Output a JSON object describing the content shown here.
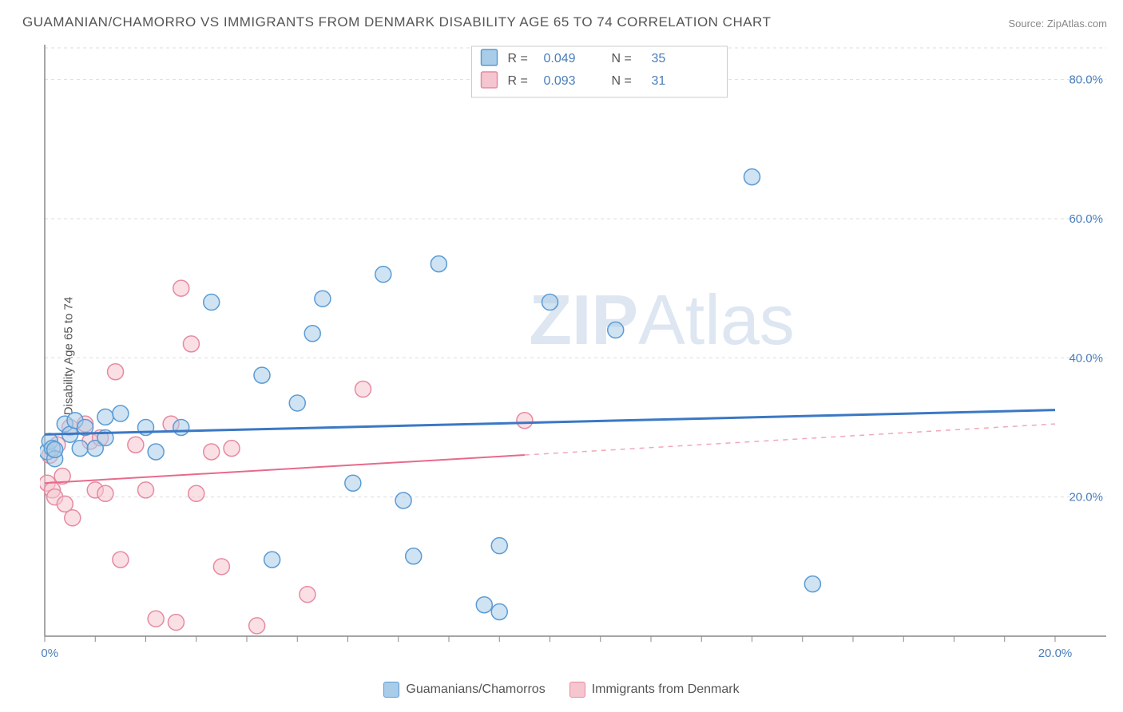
{
  "title": "GUAMANIAN/CHAMORRO VS IMMIGRANTS FROM DENMARK DISABILITY AGE 65 TO 74 CORRELATION CHART",
  "source": "Source: ZipAtlas.com",
  "ylabel": "Disability Age 65 to 74",
  "watermark": {
    "bold": "ZIP",
    "rest": "Atlas"
  },
  "chart": {
    "type": "scatter",
    "xlim": [
      0,
      20
    ],
    "ylim": [
      0,
      85
    ],
    "xtick_values": [
      0,
      20
    ],
    "xtick_labels": [
      "0.0%",
      "20.0%"
    ],
    "ytick_values": [
      20,
      40,
      60,
      80
    ],
    "ytick_labels": [
      "20.0%",
      "40.0%",
      "60.0%",
      "80.0%"
    ],
    "grid_color": "#dddddd",
    "axis_color": "#888888",
    "background_color": "#ffffff",
    "marker_radius": 10,
    "series": [
      {
        "name": "Guamanians/Chamorros",
        "color_fill": "#a9cce8",
        "color_stroke": "#5a9bd5",
        "R": "0.049",
        "N": "35",
        "trend": {
          "x0": 0,
          "y0": 29.0,
          "x1": 20,
          "y1": 32.5,
          "solid_until": 20
        },
        "points": [
          [
            0.05,
            26.5
          ],
          [
            0.1,
            28.0
          ],
          [
            0.15,
            27.0
          ],
          [
            0.2,
            25.5
          ],
          [
            0.2,
            26.8
          ],
          [
            0.4,
            30.5
          ],
          [
            0.5,
            29.0
          ],
          [
            0.6,
            31.0
          ],
          [
            0.7,
            27.0
          ],
          [
            0.8,
            30.0
          ],
          [
            1.0,
            27.0
          ],
          [
            1.2,
            31.5
          ],
          [
            1.2,
            28.5
          ],
          [
            1.5,
            32.0
          ],
          [
            2.0,
            30.0
          ],
          [
            2.2,
            26.5
          ],
          [
            2.7,
            30.0
          ],
          [
            3.3,
            48.0
          ],
          [
            4.3,
            37.5
          ],
          [
            4.5,
            11.0
          ],
          [
            5.0,
            33.5
          ],
          [
            5.3,
            43.5
          ],
          [
            5.5,
            48.5
          ],
          [
            6.1,
            22.0
          ],
          [
            6.7,
            52.0
          ],
          [
            7.1,
            19.5
          ],
          [
            7.3,
            11.5
          ],
          [
            7.8,
            53.5
          ],
          [
            8.7,
            4.5
          ],
          [
            9.0,
            13.0
          ],
          [
            9.0,
            3.5
          ],
          [
            10.0,
            48.0
          ],
          [
            11.3,
            44.0
          ],
          [
            14.0,
            66.0
          ],
          [
            15.2,
            7.5
          ]
        ]
      },
      {
        "name": "Immigrants from Denmark",
        "color_fill": "#f5c6d0",
        "color_stroke": "#e68aa0",
        "R": "0.093",
        "N": "31",
        "trend": {
          "x0": 0,
          "y0": 22.0,
          "x1": 20,
          "y1": 30.5,
          "solid_until": 9.5
        },
        "points": [
          [
            0.05,
            22.0
          ],
          [
            0.1,
            26.0
          ],
          [
            0.15,
            21.0
          ],
          [
            0.2,
            20.0
          ],
          [
            0.25,
            27.5
          ],
          [
            0.35,
            23.0
          ],
          [
            0.4,
            19.0
          ],
          [
            0.5,
            30.0
          ],
          [
            0.55,
            17.0
          ],
          [
            0.8,
            30.5
          ],
          [
            0.9,
            28.0
          ],
          [
            1.0,
            21.0
          ],
          [
            1.1,
            28.5
          ],
          [
            1.2,
            20.5
          ],
          [
            1.4,
            38.0
          ],
          [
            1.5,
            11.0
          ],
          [
            1.8,
            27.5
          ],
          [
            2.0,
            21.0
          ],
          [
            2.2,
            2.5
          ],
          [
            2.5,
            30.5
          ],
          [
            2.6,
            2.0
          ],
          [
            2.7,
            50.0
          ],
          [
            2.9,
            42.0
          ],
          [
            3.0,
            20.5
          ],
          [
            3.3,
            26.5
          ],
          [
            3.5,
            10.0
          ],
          [
            3.7,
            27.0
          ],
          [
            4.2,
            1.5
          ],
          [
            5.2,
            6.0
          ],
          [
            6.3,
            35.5
          ],
          [
            9.5,
            31.0
          ]
        ]
      }
    ],
    "xtick_minor": [
      0,
      1,
      2,
      3,
      4,
      5,
      6,
      7,
      8,
      9,
      10,
      11,
      12,
      13,
      14,
      15,
      16,
      17,
      18,
      19,
      20
    ]
  },
  "legend_bottom": [
    {
      "label": "Guamanians/Chamorros",
      "swatch": "blue"
    },
    {
      "label": "Immigrants from Denmark",
      "swatch": "pink"
    }
  ],
  "stats_legend": {
    "rows": [
      {
        "swatch": "blue",
        "R_label": "R =",
        "R": "0.049",
        "N_label": "N =",
        "N": "35"
      },
      {
        "swatch": "pink",
        "R_label": "R =",
        "R": "0.093",
        "N_label": "N =",
        "31": "31",
        "N": "31"
      }
    ]
  }
}
